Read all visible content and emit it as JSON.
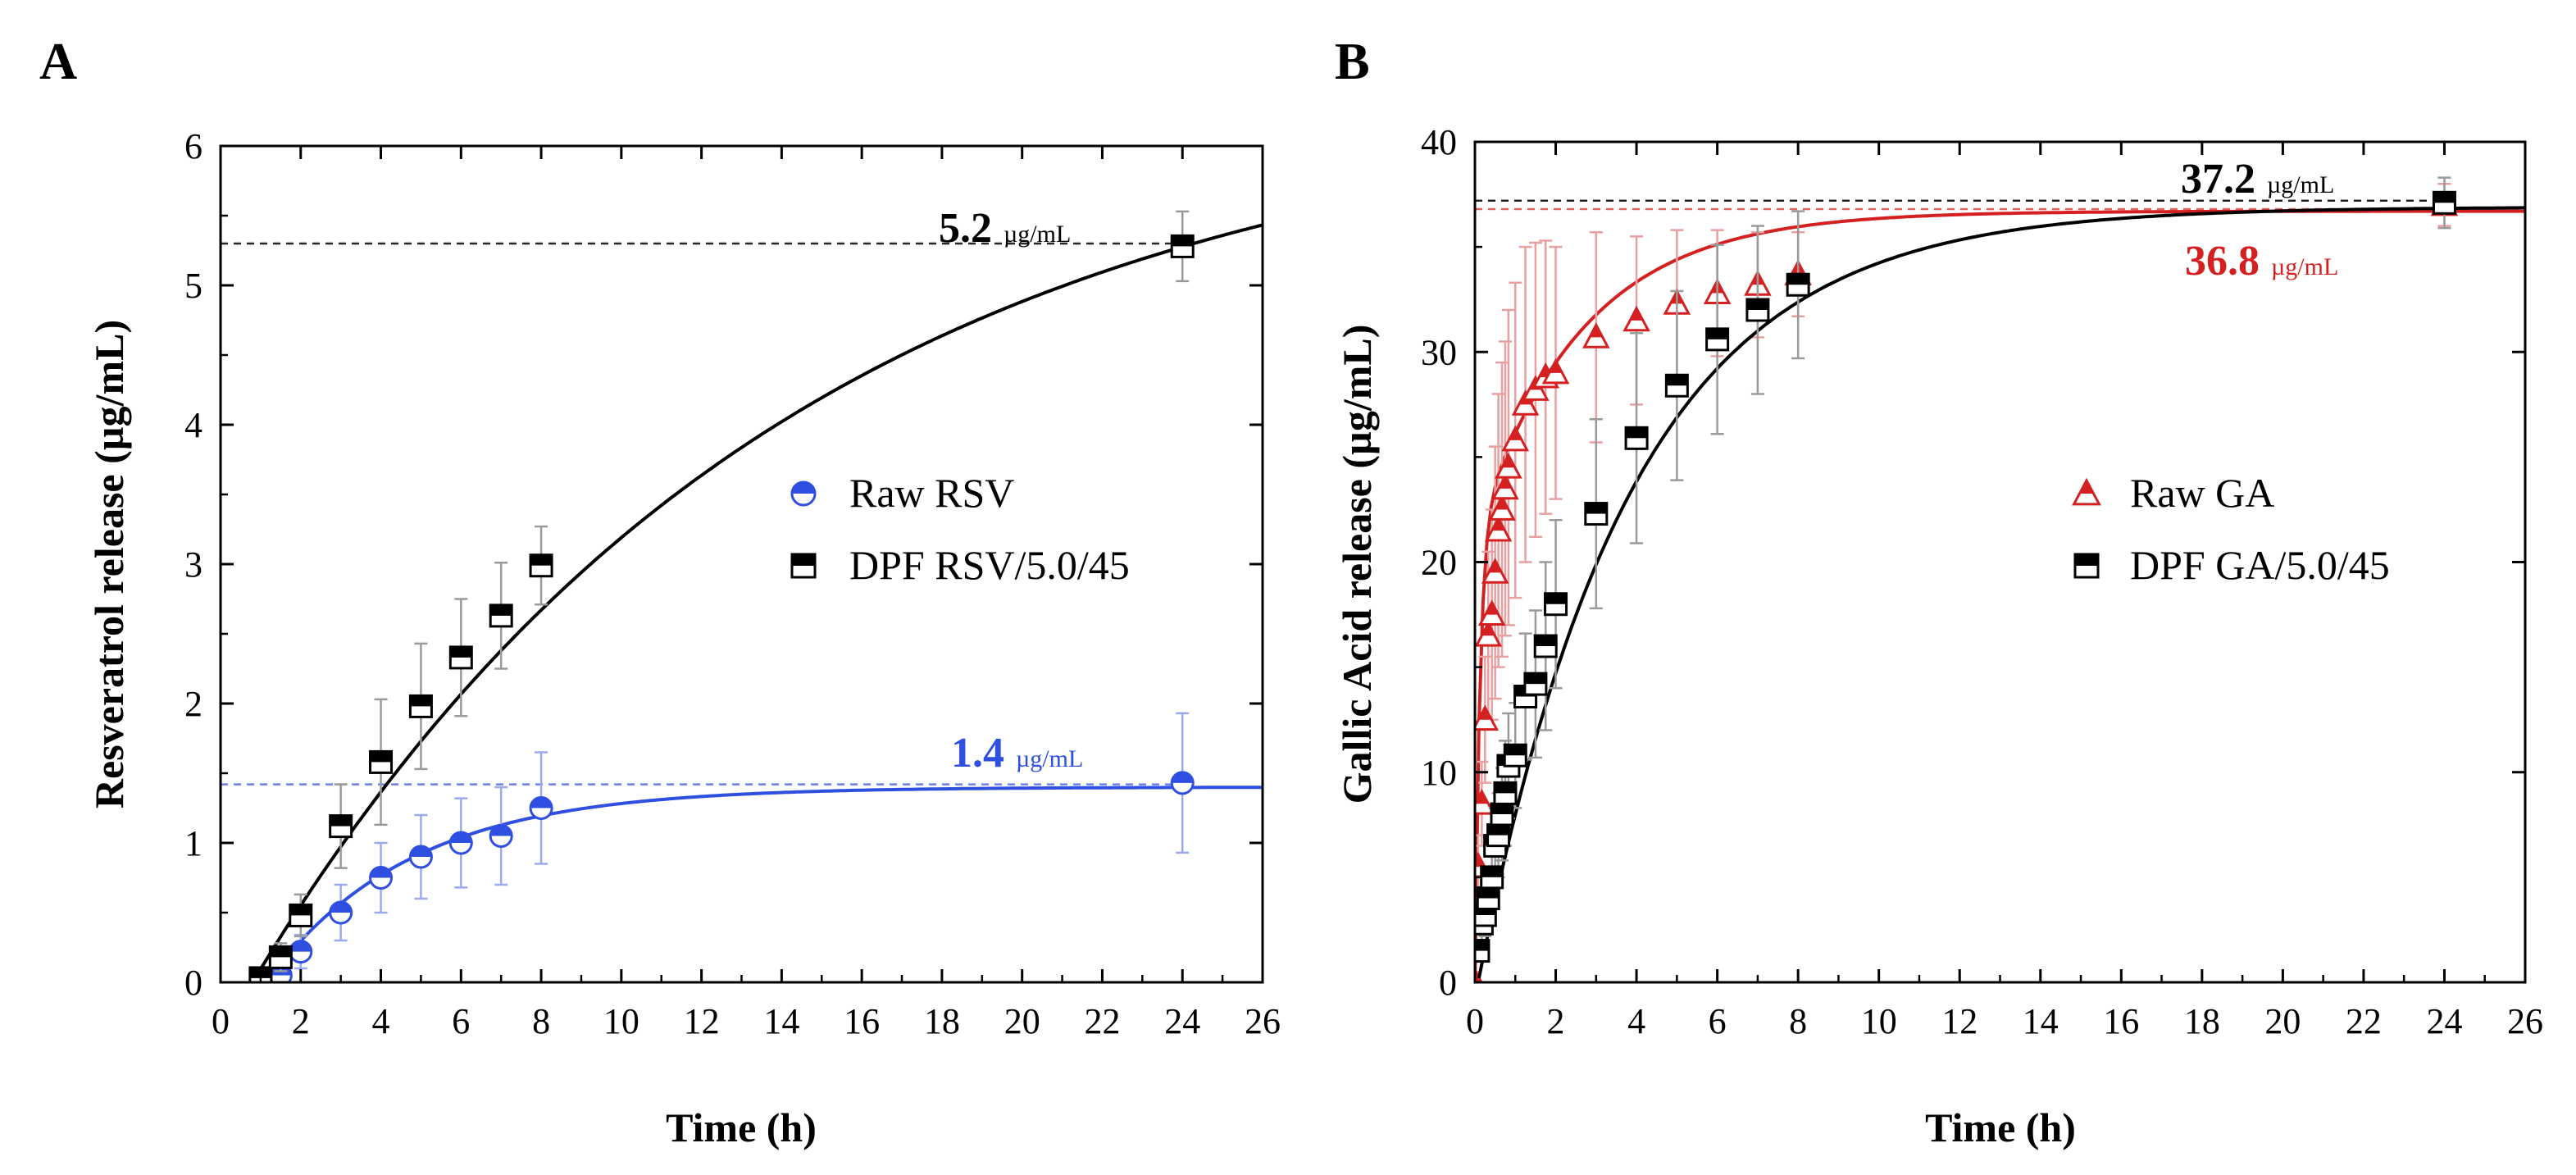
{
  "chart_data": [
    {
      "type": "scatter",
      "panel": "A",
      "xlabel": "Time (h)",
      "ylabel": "Resveratrol release (µg/mL)",
      "xlim": [
        0,
        26
      ],
      "ylim": [
        0,
        6
      ],
      "xticks": [
        "0",
        "2",
        "4",
        "6",
        "8",
        "10",
        "12",
        "14",
        "16",
        "18",
        "20",
        "22",
        "24",
        "26"
      ],
      "yticks": [
        "0",
        "1",
        "2",
        "3",
        "4",
        "5",
        "6"
      ],
      "legend_position": "right-middle",
      "series": [
        {
          "name": "Raw RSV",
          "marker": "half-filled-circle",
          "color": "#2f4fe0",
          "x": [
            1,
            1.5,
            2,
            3,
            4,
            5,
            6,
            7,
            8,
            24
          ],
          "y": [
            0.02,
            0.05,
            0.22,
            0.5,
            0.75,
            0.9,
            1.0,
            1.05,
            1.25,
            1.43
          ],
          "err": [
            0.05,
            0.08,
            0.12,
            0.2,
            0.25,
            0.3,
            0.32,
            0.35,
            0.4,
            0.5
          ],
          "fit": {
            "model": "first-order",
            "t0": 1.15,
            "plateau": 1.4,
            "k": 0.28
          },
          "plateau_line": 1.42,
          "annotation_value": "1.4",
          "annotation_unit": "µg/mL"
        },
        {
          "name": "DPF RSV/5.0/45",
          "marker": "half-filled-square",
          "color": "#000000",
          "x": [
            1,
            1.5,
            2,
            3,
            4,
            5,
            6,
            7,
            8,
            24
          ],
          "y": [
            0.03,
            0.18,
            0.48,
            1.12,
            1.58,
            1.98,
            2.33,
            2.63,
            2.99,
            5.28
          ],
          "err": [
            0.05,
            0.1,
            0.15,
            0.3,
            0.45,
            0.45,
            0.42,
            0.38,
            0.28,
            0.25
          ],
          "fit": {
            "model": "first-order",
            "t0": 0.8,
            "plateau": 6.4,
            "k": 0.075
          },
          "plateau_line": 5.3,
          "annotation_value": "5.2",
          "annotation_unit": "µg/mL"
        }
      ]
    },
    {
      "type": "scatter",
      "panel": "B",
      "xlabel": "Time (h)",
      "ylabel": "Gallic Acid release (µg/mL)",
      "xlim": [
        0,
        26
      ],
      "ylim": [
        0,
        40
      ],
      "xticks": [
        "0",
        "2",
        "4",
        "6",
        "8",
        "10",
        "12",
        "14",
        "16",
        "18",
        "20",
        "22",
        "24",
        "26"
      ],
      "yticks": [
        "0",
        "10",
        "20",
        "30",
        "40"
      ],
      "legend_position": "right-middle",
      "series": [
        {
          "name": "Raw GA",
          "marker": "half-filled-triangle",
          "color": "#d42020",
          "x": [
            0,
            0.08,
            0.17,
            0.25,
            0.33,
            0.42,
            0.5,
            0.58,
            0.67,
            0.75,
            0.83,
            1,
            1.25,
            1.5,
            1.75,
            2,
            3,
            4,
            5,
            6,
            7,
            8,
            24
          ],
          "y": [
            0,
            5.5,
            8.5,
            12.5,
            16.5,
            17.5,
            19.5,
            21.5,
            22.5,
            23.5,
            24.5,
            25.8,
            27.5,
            28.2,
            28.8,
            29.0,
            30.7,
            31.5,
            32.3,
            32.8,
            33.2,
            33.7,
            37.0
          ],
          "err": [
            0.5,
            1.5,
            2,
            3,
            4,
            5,
            6,
            6.5,
            7,
            7,
            7.5,
            7.5,
            7.5,
            7,
            6.5,
            6,
            5,
            4,
            3.5,
            3,
            2.5,
            2,
            1
          ],
          "fit": {
            "model": "first-order",
            "t0": 0,
            "plateau": 36.7,
            "k": 0.38,
            "fast_fraction": 0.58,
            "k_fast": 8
          },
          "plateau_line": 36.8,
          "annotation_value": "36.8",
          "annotation_unit": "µg/mL"
        },
        {
          "name": "DPF GA/5.0/45",
          "marker": "half-filled-square",
          "color": "#000000",
          "x": [
            0.08,
            0.17,
            0.25,
            0.33,
            0.42,
            0.5,
            0.58,
            0.67,
            0.75,
            0.83,
            1,
            1.25,
            1.5,
            1.75,
            2,
            3,
            4,
            5,
            6,
            7,
            8,
            24
          ],
          "y": [
            1.5,
            2.8,
            3.2,
            4.0,
            5.0,
            6.5,
            7.0,
            8.0,
            9.0,
            10.3,
            10.8,
            13.6,
            14.2,
            16.0,
            18.0,
            22.3,
            25.9,
            28.4,
            30.6,
            32.0,
            33.2,
            37.1
          ],
          "err": [
            0.5,
            0.8,
            1,
            1.2,
            1.5,
            1.8,
            2,
            2.2,
            2.5,
            2.5,
            2.5,
            3,
            3.5,
            4,
            4,
            4.5,
            5,
            4.5,
            4.5,
            4,
            3.5,
            1.2
          ],
          "fit": {
            "model": "first-order",
            "t0": 0.08,
            "plateau": 36.9,
            "k": 0.265
          },
          "plateau_line": 37.2,
          "annotation_value": "37.2",
          "annotation_unit": "µg/mL"
        }
      ]
    }
  ]
}
